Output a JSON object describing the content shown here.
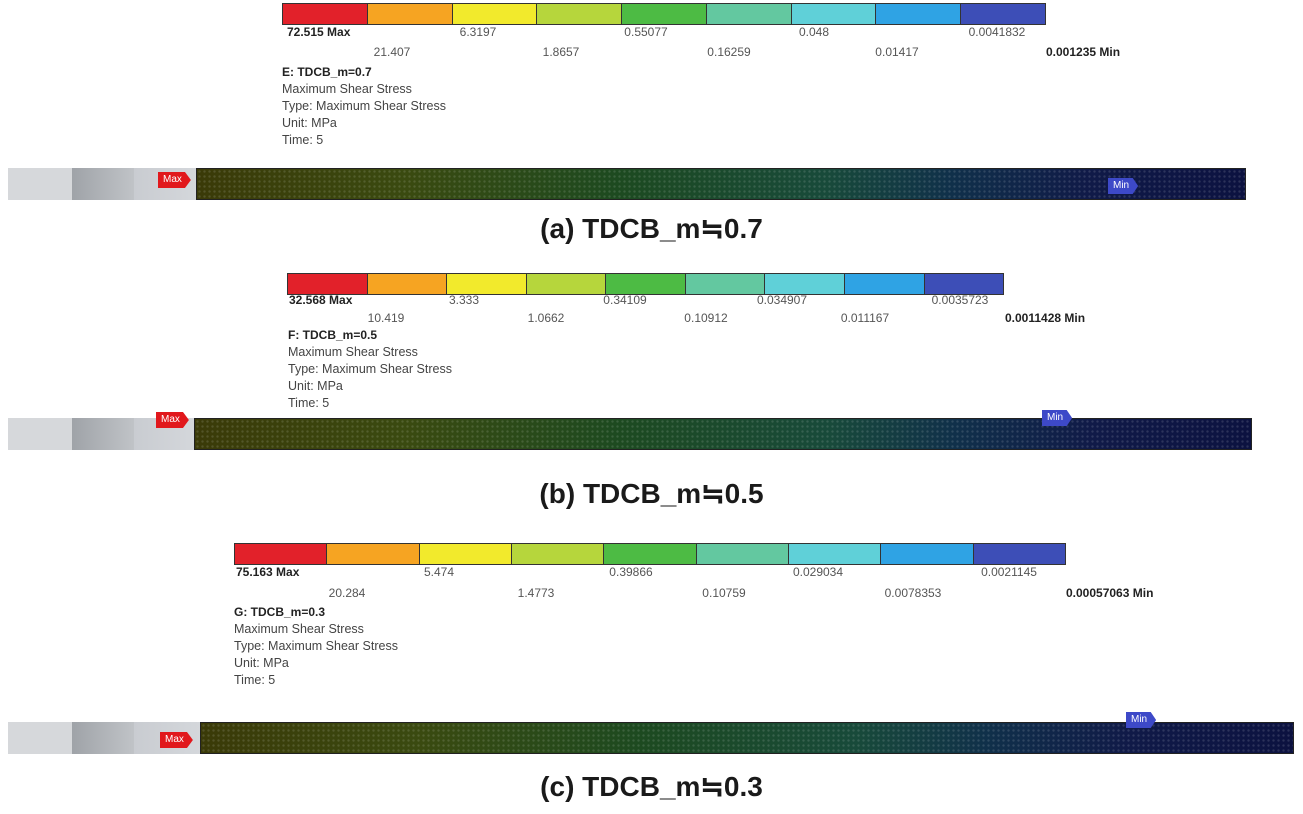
{
  "legend_colors": [
    "#e2212a",
    "#f6a422",
    "#f2ea2c",
    "#b6d63c",
    "#4dbb44",
    "#63c8a0",
    "#5fd0d8",
    "#2fa3e4",
    "#3d4eb7"
  ],
  "panels": [
    {
      "max_label": "72.515 Max",
      "min_label": "0.001235 Min",
      "upper_ticks": [
        "6.3197",
        "0.55077",
        "0.048",
        "0.0041832"
      ],
      "lower_ticks": [
        "21.407",
        "1.8657",
        "0.16259",
        "0.01417"
      ],
      "result_name": "E: TDCB_m=0.7",
      "quantity": "Maximum Shear Stress",
      "type": "Type: Maximum Shear Stress",
      "unit": "Unit: MPa",
      "time": "Time: 5",
      "probe_max": "Max",
      "probe_min": "Min",
      "caption": "(a) TDCB_m≒0.7"
    },
    {
      "max_label": "32.568 Max",
      "min_label": "0.0011428 Min",
      "upper_ticks": [
        "3.333",
        "0.34109",
        "0.034907",
        "0.0035723"
      ],
      "lower_ticks": [
        "10.419",
        "1.0662",
        "0.10912",
        "0.011167"
      ],
      "result_name": "F: TDCB_m=0.5",
      "quantity": "Maximum Shear Stress",
      "type": "Type: Maximum Shear Stress",
      "unit": "Unit: MPa",
      "time": "Time: 5",
      "probe_max": "Max",
      "probe_min": "Min",
      "caption": "(b) TDCB_m≒0.5"
    },
    {
      "max_label": "75.163 Max",
      "min_label": "0.00057063 Min",
      "upper_ticks": [
        "5.474",
        "0.39866",
        "0.029034",
        "0.0021145"
      ],
      "lower_ticks": [
        "20.284",
        "1.4773",
        "0.10759",
        "0.0078353"
      ],
      "result_name": "G: TDCB_m=0.3",
      "quantity": "Maximum Shear Stress",
      "type": "Type: Maximum Shear Stress",
      "unit": "Unit: MPa",
      "time": "Time: 5",
      "probe_max": "Max",
      "probe_min": "Min",
      "caption": "(c) TDCB_m≒0.3"
    }
  ]
}
